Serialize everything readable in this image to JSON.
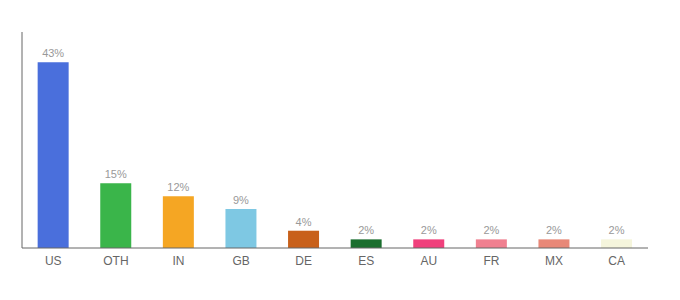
{
  "chart_data": {
    "type": "bar",
    "categories": [
      "US",
      "OTH",
      "IN",
      "GB",
      "DE",
      "ES",
      "AU",
      "FR",
      "MX",
      "CA"
    ],
    "values": [
      43,
      15,
      12,
      9,
      4,
      2,
      2,
      2,
      2,
      2
    ],
    "value_labels": [
      "43%",
      "15%",
      "12%",
      "9%",
      "4%",
      "2%",
      "2%",
      "2%",
      "2%",
      "2%"
    ],
    "colors": [
      "#4a6fdc",
      "#3ab54a",
      "#f5a623",
      "#7ec8e3",
      "#c8601a",
      "#1a6e2e",
      "#f0407c",
      "#f08090",
      "#e88878",
      "#f5f5dc"
    ],
    "ylim": [
      0,
      50
    ],
    "data_labels": true,
    "tick_labels": "x",
    "grid": false
  }
}
